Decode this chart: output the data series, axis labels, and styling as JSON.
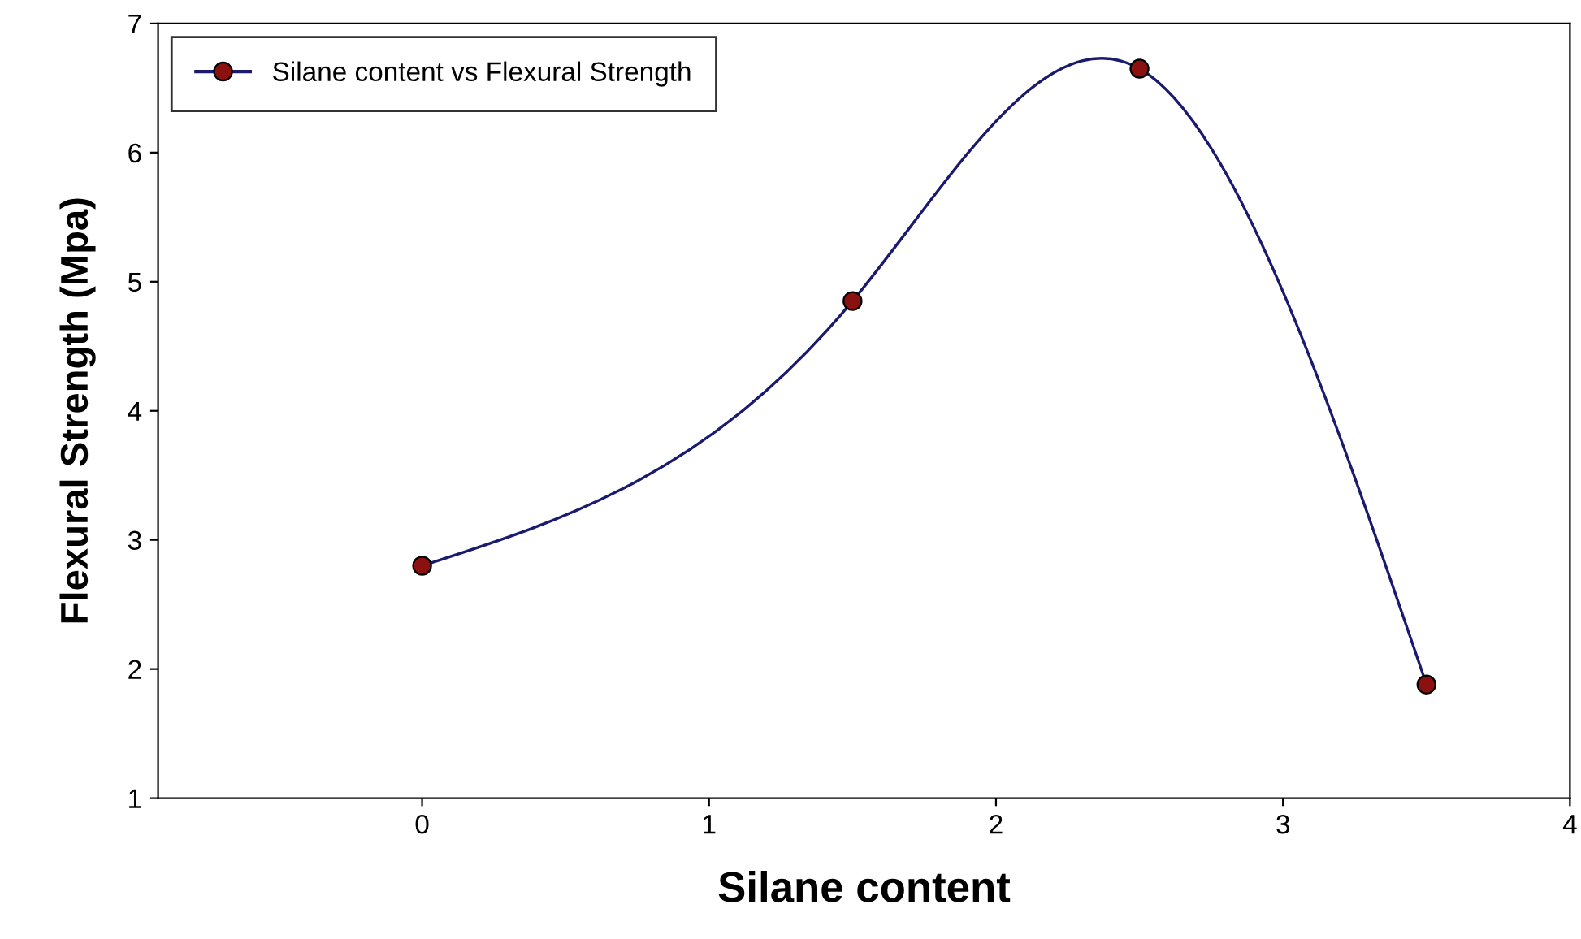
{
  "chart_data": {
    "type": "line",
    "xlabel": "Silane content",
    "ylabel": "Flexural Strength (Mpa)",
    "x": [
      0,
      1.5,
      2.5,
      3.5
    ],
    "series": [
      {
        "name": "Silane content vs Flexural Strength",
        "color": "#1a1a6e",
        "colors": [
          "#8b1010",
          "#8b1010",
          "#8b1010",
          "#8b1010"
        ],
        "values": [
          2.8,
          4.85,
          6.65,
          1.88
        ]
      }
    ],
    "xlim": [
      -0.92,
      4
    ],
    "xticks": [
      0,
      1,
      2,
      3,
      4
    ],
    "ylim": [
      1,
      7
    ],
    "yticks": [
      1,
      2,
      3,
      4,
      5,
      6,
      7
    ],
    "grid": false,
    "legend": "top left",
    "marker": "circle",
    "line_style": "solid"
  }
}
